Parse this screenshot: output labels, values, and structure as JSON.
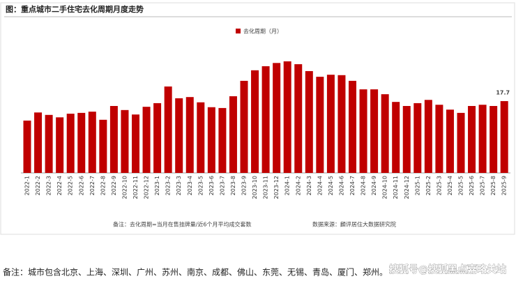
{
  "chart_data": {
    "type": "bar",
    "title": "图：重点城市二手住宅去化周期月度走势",
    "legend": "去化周期（月）",
    "color": "#c00000",
    "categories": [
      "2022-1",
      "2022-2",
      "2022-3",
      "2022-4",
      "2022-5",
      "2022-6",
      "2022-7",
      "2022-8",
      "2022-9",
      "2022-10",
      "2022-11",
      "2022-12",
      "2023-1",
      "2023-2",
      "2023-3",
      "2023-4",
      "2023-5",
      "2023-6",
      "2023-7",
      "2023-8",
      "2023-9",
      "2023-10",
      "2023-11",
      "2023-12",
      "2024-1",
      "2024-2",
      "2024-3",
      "2024-4",
      "2024-5",
      "2024-6",
      "2024-7",
      "2024-8",
      "2024-9",
      "2024-10",
      "2024-11",
      "2024-12",
      "2025-1",
      "2025-2",
      "2025-3",
      "2025-4",
      "2025-5",
      "2025-6",
      "2025-7",
      "2025-8",
      "2025-9"
    ],
    "values": [
      12.9,
      14.9,
      14.3,
      13.7,
      14.6,
      14.8,
      15.1,
      13.1,
      16.5,
      15.5,
      14.4,
      16.3,
      17.2,
      21.3,
      18.4,
      18.7,
      17.4,
      16.2,
      16.0,
      18.9,
      22.7,
      25.3,
      26.3,
      27.1,
      27.5,
      26.8,
      25.1,
      23.7,
      24.2,
      24.1,
      22.7,
      20.6,
      20.6,
      19.4,
      17.5,
      16.5,
      17.2,
      18.0,
      16.8,
      15.6,
      14.8,
      16.5,
      16.8,
      16.5,
      17.7
    ],
    "note": "备注：去化周期=当月在售挂牌量/近6个月平均成交套数",
    "source": "数据来源：麟评居住大数据研究院"
  },
  "footnote": "备注：城市包含北京、上海、深圳、广州、苏州、南京、成都、佛山、东莞、无锡、青岛、厦门、郑州。",
  "watermark": "搜狐号@搜狐黑点嘉略关站"
}
